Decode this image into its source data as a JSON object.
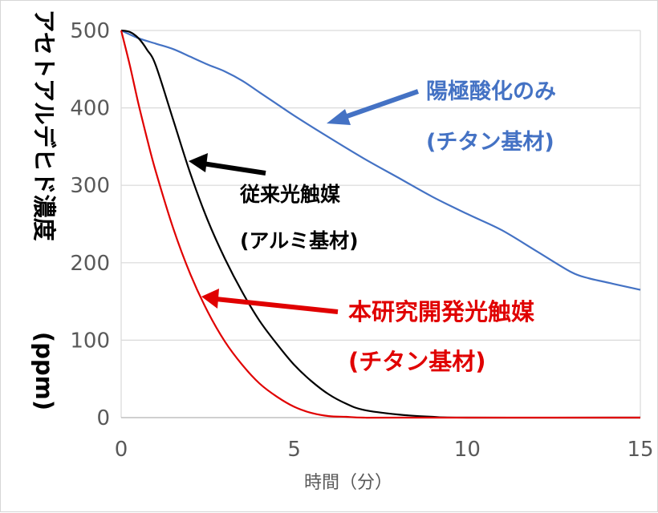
{
  "chart_data": {
    "type": "line",
    "xlabel": "時間（分）",
    "ylabel": "アセトアルデヒド濃度",
    "ylabel_unit": "(ppm)",
    "xlim": [
      0,
      15
    ],
    "ylim": [
      0,
      500
    ],
    "x_ticks": [
      0,
      5,
      10,
      15
    ],
    "y_ticks": [
      0,
      100,
      200,
      300,
      400,
      500
    ],
    "grid": "horizontal",
    "legend": "none",
    "series": [
      {
        "color": "#4472c4",
        "x": [
          0,
          0.5,
          1,
          1.5,
          2,
          2.5,
          3,
          3.5,
          4,
          4.5,
          5,
          6,
          7,
          8,
          9,
          10,
          11,
          12,
          13,
          13.5,
          14,
          14.5,
          15
        ],
        "y": [
          500,
          490,
          483,
          476,
          466,
          456,
          447,
          435,
          420,
          405,
          390,
          362,
          335,
          310,
          285,
          263,
          242,
          215,
          188,
          180,
          175,
          170,
          165
        ]
      },
      {
        "color": "#000000",
        "x": [
          0,
          0.25,
          0.5,
          0.75,
          1,
          1.5,
          2,
          2.5,
          3,
          3.5,
          4,
          4.5,
          5,
          5.5,
          6,
          6.5,
          7,
          8,
          9,
          10,
          15
        ],
        "y": [
          500,
          498,
          490,
          475,
          455,
          385,
          315,
          255,
          205,
          162,
          125,
          95,
          68,
          47,
          30,
          18,
          10,
          4,
          1,
          0,
          0
        ]
      },
      {
        "color": "#e00000",
        "x": [
          0,
          0.25,
          0.5,
          0.75,
          1,
          1.5,
          2,
          2.5,
          3,
          3.5,
          4,
          4.5,
          5,
          5.5,
          6,
          6.5,
          7,
          8,
          15
        ],
        "y": [
          500,
          455,
          405,
          360,
          318,
          245,
          185,
          137,
          98,
          68,
          44,
          27,
          14,
          6,
          2,
          1,
          0,
          0,
          0
        ]
      }
    ],
    "annotations": [
      {
        "id": "anodized",
        "line1": "陽極酸化のみ",
        "line2": "(チタン基材)",
        "color": "#4472c4"
      },
      {
        "id": "conventional",
        "line1": "従来光触媒",
        "line2": "(アルミ基材)",
        "color": "#000000"
      },
      {
        "id": "developed",
        "line1": "本研究開発光触媒",
        "line2": "(チタン基材)",
        "color": "#e00000"
      }
    ]
  }
}
